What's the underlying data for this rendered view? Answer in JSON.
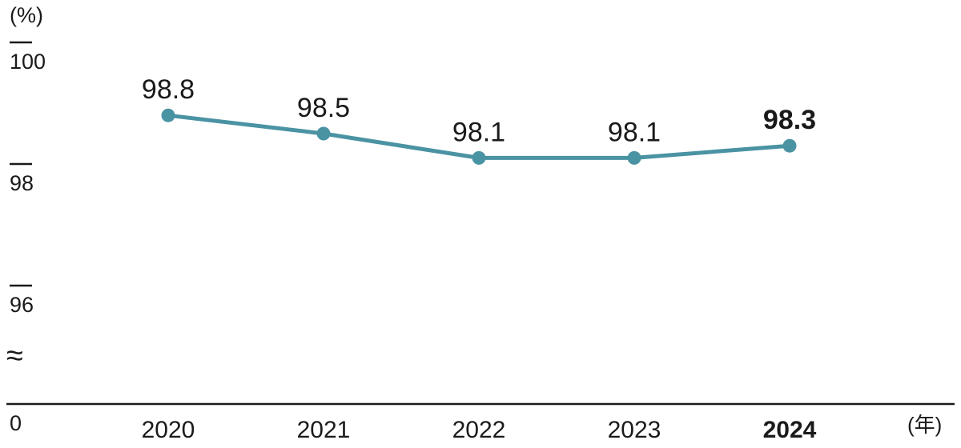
{
  "chart_data": {
    "type": "line",
    "title": "",
    "unit_y": "(%)",
    "unit_x": "(年)",
    "categories": [
      "2020",
      "2021",
      "2022",
      "2023",
      "2024"
    ],
    "values": [
      98.8,
      98.5,
      98.1,
      98.1,
      98.3
    ],
    "value_labels": [
      "98.8",
      "98.5",
      "98.1",
      "98.1",
      "98.3"
    ],
    "emphasized_index": 4,
    "y_ticks": [
      100,
      98,
      96
    ],
    "ylim_display": [
      96,
      100
    ],
    "axis_break_symbol": "≈",
    "origin_label": "0",
    "grid": false,
    "legend": "none",
    "line_color": "#4a93a3",
    "marker_color": "#4a93a3",
    "text_color": "#1a1a1a"
  }
}
